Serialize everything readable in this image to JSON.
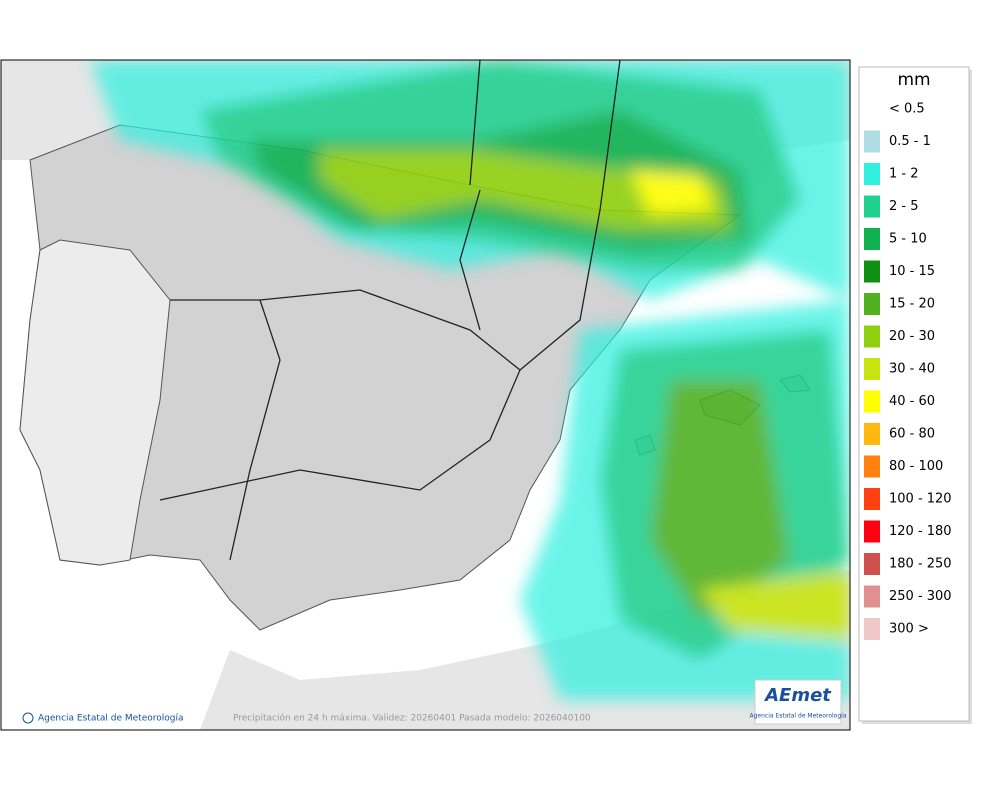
{
  "legend": {
    "title": "mm",
    "items": [
      {
        "label": "< 0.5"
      },
      {
        "label": "0.5 - 1",
        "color": "#b0dde4"
      },
      {
        "label": "1 - 2",
        "color": "#30f0e0"
      },
      {
        "label": "2 - 5",
        "color": "#20d090"
      },
      {
        "label": "5 - 10",
        "color": "#10b050"
      },
      {
        "label": "10 - 15",
        "color": "#109010"
      },
      {
        "label": "15 - 20",
        "color": "#50b020"
      },
      {
        "label": "20 - 30",
        "color": "#90d010"
      },
      {
        "label": "30 - 40",
        "color": "#c8e410"
      },
      {
        "label": "40 - 60",
        "color": "#ffff00"
      },
      {
        "label": "60 - 80",
        "color": "#ffb810"
      },
      {
        "label": "80 - 100",
        "color": "#ff8010"
      },
      {
        "label": "100 - 120",
        "color": "#ff4010"
      },
      {
        "label": "120 - 180",
        "color": "#ff0010"
      },
      {
        "label": "180 - 250",
        "color": "#d05050"
      },
      {
        "label": "250 - 300",
        "color": "#e09090"
      },
      {
        "label": "300 >",
        "color": "#f0c8c8"
      }
    ]
  },
  "footer": {
    "copyright": "Agencia Estatal de Meteorología",
    "caption": "Precipitación en 24 h máxima. Validez: 20260401 Pasada modelo: 2026040100"
  },
  "logo": {
    "name": "AEmet",
    "subtitle": "Agencia Estatal de Meteorología"
  }
}
